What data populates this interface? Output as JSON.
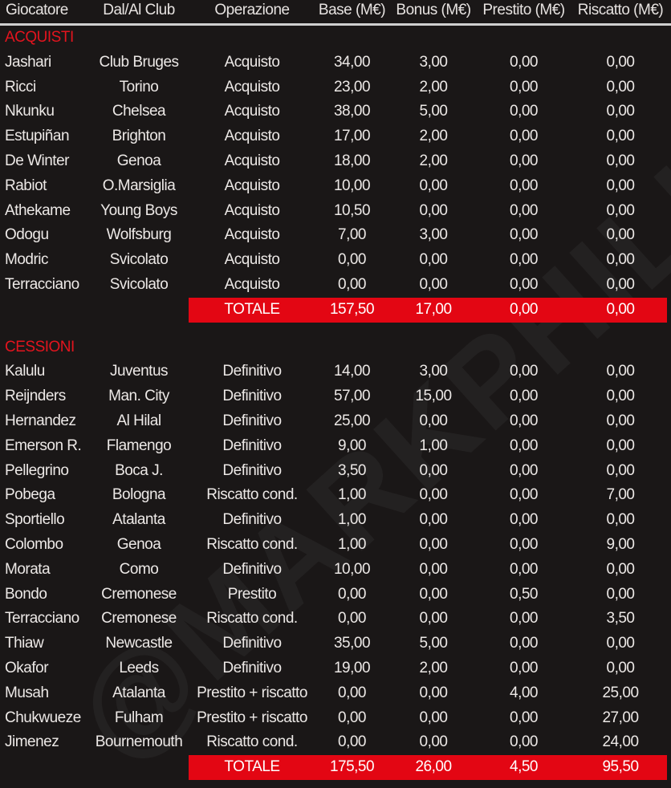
{
  "colors": {
    "accent": "#e30613",
    "background": "#1a1717",
    "text": "#ece8e6"
  },
  "watermark": "@MARKPHILIPS",
  "headers": [
    "Giocatore",
    "Dal/Al Club",
    "Operazione",
    "Base (M€)",
    "Bonus (M€)",
    "Prestito (M€)",
    "Riscatto (M€)"
  ],
  "sections": [
    {
      "title": "ACQUISTI",
      "rows": [
        [
          "Jashari",
          "Club Bruges",
          "Acquisto",
          "34,00",
          "3,00",
          "0,00",
          "0,00"
        ],
        [
          "Ricci",
          "Torino",
          "Acquisto",
          "23,00",
          "2,00",
          "0,00",
          "0,00"
        ],
        [
          "Nkunku",
          "Chelsea",
          "Acquisto",
          "38,00",
          "5,00",
          "0,00",
          "0,00"
        ],
        [
          "Estupiñan",
          "Brighton",
          "Acquisto",
          "17,00",
          "2,00",
          "0,00",
          "0,00"
        ],
        [
          "De Winter",
          "Genoa",
          "Acquisto",
          "18,00",
          "2,00",
          "0,00",
          "0,00"
        ],
        [
          "Rabiot",
          "O.Marsiglia",
          "Acquisto",
          "10,00",
          "0,00",
          "0,00",
          "0,00"
        ],
        [
          "Athekame",
          "Young Boys",
          "Acquisto",
          "10,50",
          "0,00",
          "0,00",
          "0,00"
        ],
        [
          "Odogu",
          "Wolfsburg",
          "Acquisto",
          "7,00",
          "3,00",
          "0,00",
          "0,00"
        ],
        [
          "Modric",
          "Svicolato",
          "Acquisto",
          "0,00",
          "0,00",
          "0,00",
          "0,00"
        ],
        [
          "Terracciano",
          "Svicolato",
          "Acquisto",
          "0,00",
          "0,00",
          "0,00",
          "0,00"
        ]
      ],
      "total": {
        "label": "TOTALE",
        "values": [
          "157,50",
          "17,00",
          "0,00",
          "0,00"
        ]
      }
    },
    {
      "title": "CESSIONI",
      "rows": [
        [
          "Kalulu",
          "Juventus",
          "Definitivo",
          "14,00",
          "3,00",
          "0,00",
          "0,00"
        ],
        [
          "Reijnders",
          "Man. City",
          "Definitivo",
          "57,00",
          "15,00",
          "0,00",
          "0,00"
        ],
        [
          "Hernandez",
          "Al Hilal",
          "Definitivo",
          "25,00",
          "0,00",
          "0,00",
          "0,00"
        ],
        [
          "Emerson R.",
          "Flamengo",
          "Definitivo",
          "9,00",
          "1,00",
          "0,00",
          "0,00"
        ],
        [
          "Pellegrino",
          "Boca J.",
          "Definitivo",
          "3,50",
          "0,00",
          "0,00",
          "0,00"
        ],
        [
          "Pobega",
          "Bologna",
          "Riscatto cond.",
          "1,00",
          "0,00",
          "0,00",
          "7,00"
        ],
        [
          "Sportiello",
          "Atalanta",
          "Definitivo",
          "1,00",
          "0,00",
          "0,00",
          "0,00"
        ],
        [
          "Colombo",
          "Genoa",
          "Riscatto cond.",
          "1,00",
          "0,00",
          "0,00",
          "9,00"
        ],
        [
          "Morata",
          "Como",
          "Definitivo",
          "10,00",
          "0,00",
          "0,00",
          "0,00"
        ],
        [
          "Bondo",
          "Cremonese",
          "Prestito",
          "0,00",
          "0,00",
          "0,50",
          "0,00"
        ],
        [
          "Terracciano",
          "Cremonese",
          "Riscatto cond.",
          "0,00",
          "0,00",
          "0,00",
          "3,50"
        ],
        [
          "Thiaw",
          "Newcastle",
          "Definitivo",
          "35,00",
          "5,00",
          "0,00",
          "0,00"
        ],
        [
          "Okafor",
          "Leeds",
          "Definitivo",
          "19,00",
          "2,00",
          "0,00",
          "0,00"
        ],
        [
          "Musah",
          "Atalanta",
          "Prestito + riscatto",
          "0,00",
          "0,00",
          "4,00",
          "25,00"
        ],
        [
          "Chukwueze",
          "Fulham",
          "Prestito + riscatto",
          "0,00",
          "0,00",
          "0,00",
          "27,00"
        ],
        [
          "Jimenez",
          "Bournemouth",
          "Riscatto cond.",
          "0,00",
          "0,00",
          "0,00",
          "24,00"
        ]
      ],
      "total": {
        "label": "TOTALE",
        "values": [
          "175,50",
          "26,00",
          "4,50",
          "95,50"
        ]
      }
    }
  ]
}
